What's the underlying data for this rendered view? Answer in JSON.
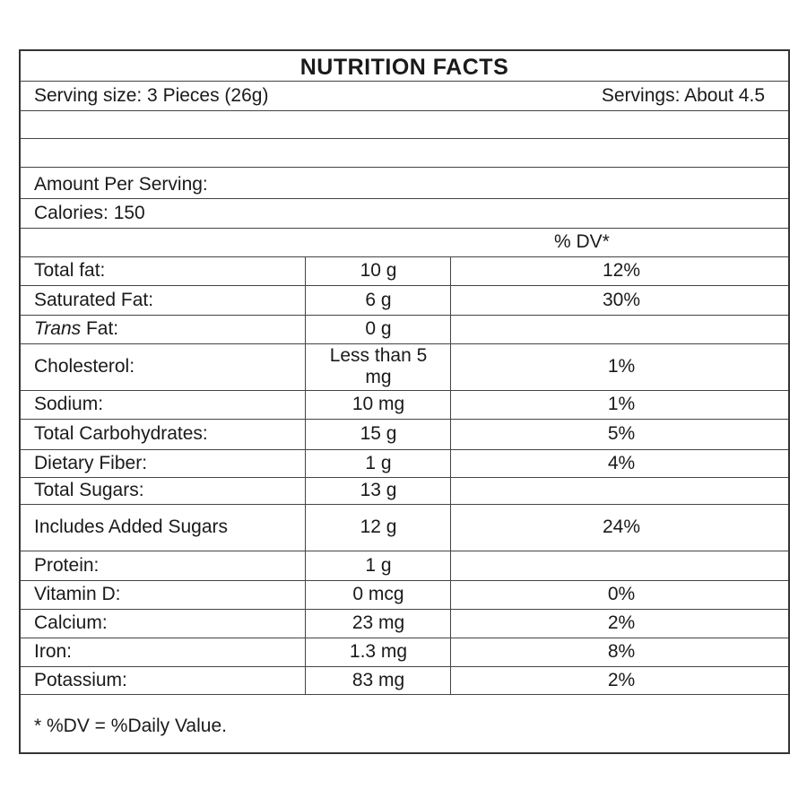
{
  "label": {
    "title": "NUTRITION FACTS",
    "serving_size": "Serving size: 3 Pieces (26g)",
    "servings": "Servings: About 4.5",
    "amount_per_serving": "Amount Per Serving:",
    "calories": "Calories: 150",
    "dv_header": "% DV*",
    "rows": [
      {
        "name": "Total fat:",
        "amount": "10 g",
        "dv": "12%"
      },
      {
        "name": "Saturated Fat:",
        "amount": "6 g",
        "dv": "30%"
      },
      {
        "name_italic": "Trans",
        "name": " Fat:",
        "amount": "0 g",
        "dv": ""
      },
      {
        "name": "Cholesterol:",
        "amount": "Less than 5 mg",
        "dv": "1%"
      },
      {
        "name": "Sodium:",
        "amount": "10 mg",
        "dv": "1%"
      },
      {
        "name": "Total Carbohydrates:",
        "amount": "15 g",
        "dv": "5%"
      },
      {
        "name": "Dietary Fiber:",
        "amount": "1 g",
        "dv": "4%"
      },
      {
        "name": "Total Sugars:",
        "amount": "13 g",
        "dv": ""
      },
      {
        "name": "Includes Added Sugars",
        "amount": "12 g",
        "dv": "24%"
      },
      {
        "name": "Protein:",
        "amount": "1 g",
        "dv": ""
      },
      {
        "name": "Vitamin D:",
        "amount": "0 mcg",
        "dv": "0%"
      },
      {
        "name": "Calcium:",
        "amount": "23 mg",
        "dv": "2%"
      },
      {
        "name": "Iron:",
        "amount": "1.3 mg",
        "dv": "8%"
      },
      {
        "name": "Potassium:",
        "amount": "83 mg",
        "dv": "2%"
      }
    ],
    "footnote": "* %DV = %Daily Value."
  }
}
